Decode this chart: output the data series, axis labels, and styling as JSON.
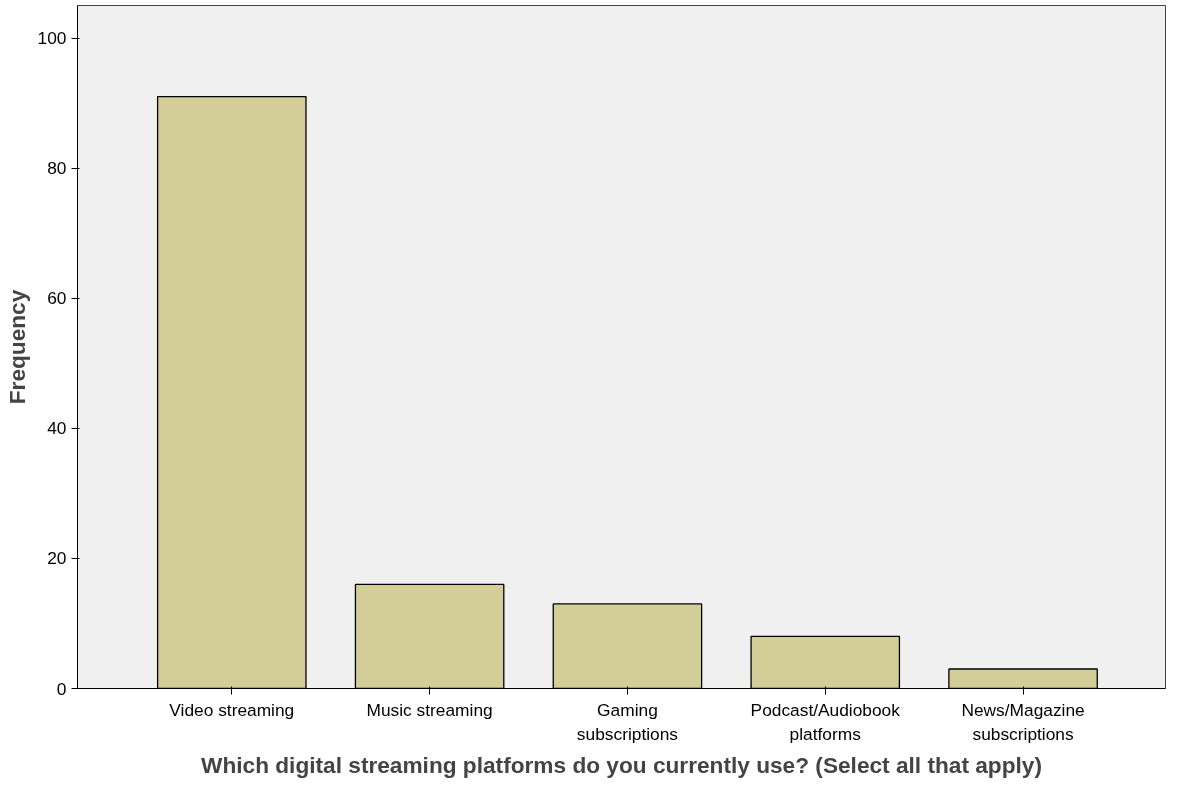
{
  "chart_data": {
    "type": "bar",
    "xlabel": "Which digital streaming platforms do you currently use? (Select all that apply)",
    "ylabel": "Frequency",
    "categories": [
      "Video streaming",
      "Music streaming",
      "Gaming subscriptions",
      "Podcast/Audiobook platforms",
      "News/Magazine subscriptions"
    ],
    "values": [
      91,
      16,
      13,
      8,
      3
    ],
    "color": "#d3ce97",
    "ylim": [
      0,
      105
    ],
    "yticks": [
      0,
      20,
      40,
      60,
      80,
      100
    ],
    "grid": false
  }
}
